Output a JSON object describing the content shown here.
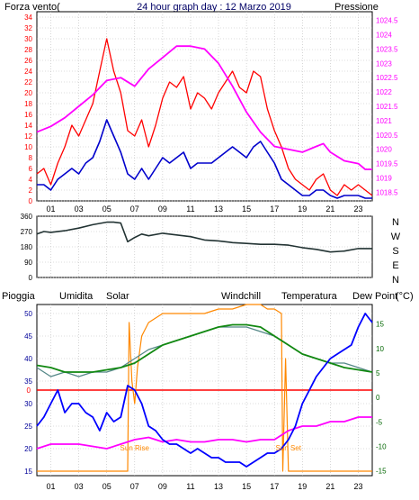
{
  "title": "24 hour graph day : 12 Marzo 2019",
  "colors": {
    "wind": "#ff0000",
    "gust_line": "#0000cc",
    "pressure": "#ff00ff",
    "direction": "#223333",
    "rain": "#ff0000",
    "humidity": "#0000ff",
    "solar": "#ff8800",
    "windchill": "#558888",
    "temperature": "#118811",
    "dewpoint": "#ff00ff",
    "rain_label": "#ff0000",
    "humidity_label": "#000099",
    "solar_label": "#886600",
    "windchill_label": "#336666",
    "temperature_label": "#006600",
    "dewpoint_label": "#cc00cc"
  },
  "x_ticks": [
    "01",
    "03",
    "05",
    "07",
    "09",
    "11",
    "13",
    "15",
    "17",
    "19",
    "21",
    "23"
  ],
  "chart_data": [
    {
      "type": "line",
      "panel": "wind and pressure",
      "xlim": [
        0,
        24
      ],
      "left_axis": {
        "label": "Forza vento(",
        "ticks": [
          0,
          2,
          4,
          6,
          8,
          10,
          12,
          14,
          16,
          18,
          20,
          22,
          24,
          26,
          28,
          30,
          32,
          34
        ]
      },
      "right_axis": {
        "label": "Pressione",
        "ticks": [
          1018.5,
          1019,
          1019.5,
          1020,
          1020.5,
          1021,
          1021.5,
          1022,
          1022.5,
          1023,
          1023.5,
          1024,
          1024.5
        ]
      },
      "series": [
        {
          "name": "Forza vento(",
          "x": [
            0,
            0.5,
            1,
            1.5,
            2,
            2.5,
            3,
            3.5,
            4,
            4.5,
            5,
            5.5,
            6,
            6.5,
            7,
            7.5,
            8,
            8.5,
            9,
            9.5,
            10,
            10.5,
            11,
            11.5,
            12,
            12.5,
            13,
            13.5,
            14,
            14.5,
            15,
            15.5,
            16,
            16.5,
            17,
            17.5,
            18,
            18.5,
            19,
            19.5,
            20,
            20.5,
            21,
            21.5,
            22,
            22.5,
            23,
            23.5,
            24
          ],
          "y": [
            5,
            6,
            3,
            7,
            10,
            14,
            12,
            15,
            18,
            24,
            30,
            24,
            20,
            13,
            12,
            15,
            10,
            14,
            19,
            22,
            21,
            23,
            17,
            20,
            19,
            17,
            20,
            22,
            24,
            21,
            20,
            24,
            23,
            17,
            13,
            10,
            6,
            4,
            3,
            2,
            4,
            5,
            2,
            1,
            3,
            2,
            3,
            2,
            1
          ]
        },
        {
          "name": "",
          "x": [
            0,
            0.5,
            1,
            1.5,
            2,
            2.5,
            3,
            3.5,
            4,
            4.5,
            5,
            5.5,
            6,
            6.5,
            7,
            7.5,
            8,
            8.5,
            9,
            9.5,
            10,
            10.5,
            11,
            11.5,
            12,
            12.5,
            13,
            13.5,
            14,
            14.5,
            15,
            15.5,
            16,
            16.5,
            17,
            17.5,
            18,
            18.5,
            19,
            19.5,
            20,
            20.5,
            21,
            21.5,
            22,
            22.5,
            23,
            23.5,
            24
          ],
          "y": [
            3,
            3,
            2,
            4,
            5,
            6,
            5,
            7,
            8,
            11,
            15,
            12,
            9,
            5,
            4,
            6,
            4,
            6,
            8,
            7,
            8,
            9,
            6,
            7,
            7,
            7,
            8,
            9,
            10,
            9,
            8,
            10,
            11,
            9,
            7,
            4,
            3,
            2,
            1,
            1,
            2,
            2,
            1,
            0.5,
            1,
            1,
            1,
            0.5,
            0.5
          ]
        },
        {
          "name": "Pressione",
          "x": [
            0,
            1,
            2,
            3,
            4,
            5,
            6,
            7,
            8,
            9,
            10,
            11,
            12,
            13,
            14,
            15,
            16,
            17,
            18,
            19,
            20,
            20.5,
            21,
            22,
            23,
            23.5,
            24
          ],
          "y": [
            1020.6,
            1020.8,
            1021.1,
            1021.5,
            1021.9,
            1022.4,
            1022.5,
            1022.2,
            1022.8,
            1023.2,
            1023.6,
            1023.6,
            1023.5,
            1023.0,
            1022.2,
            1021.3,
            1020.6,
            1020.1,
            1020.0,
            1019.9,
            1020.1,
            1020.2,
            1019.9,
            1019.6,
            1019.5,
            1019.3,
            1019.3
          ]
        }
      ]
    },
    {
      "type": "line",
      "panel": "wind direction",
      "xlim": [
        0,
        24
      ],
      "ylim": [
        0,
        360
      ],
      "y_ticks": [
        0,
        90,
        180,
        270,
        360
      ],
      "compass": [
        "N",
        "W",
        "S",
        "E",
        "N"
      ],
      "series": [
        {
          "name": "",
          "x": [
            0,
            0.5,
            1,
            2,
            3,
            4,
            5,
            5.5,
            6,
            6.5,
            7,
            7.5,
            8,
            9,
            10,
            11,
            12,
            13,
            14,
            15,
            16,
            17,
            18,
            19,
            20,
            21,
            22,
            23,
            24
          ],
          "y": [
            255,
            270,
            265,
            275,
            290,
            310,
            325,
            325,
            320,
            210,
            235,
            255,
            245,
            260,
            250,
            240,
            220,
            215,
            205,
            200,
            195,
            195,
            190,
            175,
            165,
            150,
            155,
            170,
            170
          ]
        }
      ]
    },
    {
      "type": "line",
      "panel": "rain humidity solar temperature",
      "xlim": [
        0,
        24
      ],
      "left_axis": {
        "ticks": [
          15,
          20,
          25,
          30,
          35,
          40,
          45,
          50
        ]
      },
      "right_axis": {
        "ticks": [
          -15,
          -10,
          -5,
          0,
          5,
          10,
          15
        ],
        "unit": "(°C)"
      },
      "rain_zero_label": "0",
      "series": [
        {
          "name": "Pioggia",
          "x": [
            0,
            24
          ],
          "y": [
            33,
            33
          ]
        },
        {
          "name": "Umidita",
          "x": [
            0,
            0.5,
            1,
            1.5,
            2,
            2.5,
            3,
            3.5,
            4,
            4.5,
            5,
            5.5,
            6,
            6.5,
            7,
            7.5,
            8,
            8.5,
            9,
            9.5,
            10,
            10.5,
            11,
            11.5,
            12,
            12.5,
            13,
            13.5,
            14,
            14.5,
            15,
            15.5,
            16,
            16.5,
            17,
            17.5,
            18,
            18.5,
            19,
            19.5,
            20,
            20.5,
            21,
            21.5,
            22,
            22.5,
            23,
            23.5,
            24
          ],
          "y": [
            25,
            27,
            30,
            33,
            28,
            30,
            30,
            28,
            27,
            24,
            28,
            26,
            27,
            34,
            33,
            30,
            25,
            24,
            22,
            21,
            21,
            20,
            19,
            20,
            19,
            18,
            18,
            17,
            17,
            17,
            16,
            17,
            18,
            19,
            19,
            20,
            22,
            25,
            30,
            33,
            36,
            38,
            40,
            41,
            42,
            43,
            47,
            50,
            48
          ]
        },
        {
          "name": "Solar",
          "x": [
            0,
            6.5,
            6.6,
            6.8,
            7,
            7.2,
            7.5,
            8,
            9,
            10,
            11,
            12,
            13,
            14,
            15,
            16,
            16.5,
            17,
            17.5,
            17.6,
            17.8,
            18,
            24
          ],
          "y": [
            15,
            15,
            48,
            35,
            30,
            38,
            45,
            48,
            50,
            50,
            50,
            50,
            51,
            51,
            52,
            52,
            51,
            51,
            50,
            15,
            40,
            15,
            15
          ]
        },
        {
          "name": "Windchill",
          "x": [
            0,
            1,
            2,
            3,
            4,
            5,
            6,
            7,
            8,
            9,
            10,
            11,
            12,
            13,
            14,
            15,
            16,
            17,
            18,
            19,
            20,
            21,
            22,
            23,
            24
          ],
          "y": [
            38,
            36,
            37,
            36,
            37,
            37,
            38,
            40,
            42,
            43,
            44,
            45,
            46,
            47,
            47,
            47,
            46,
            45,
            43,
            41,
            40,
            39,
            39,
            38,
            37
          ]
        },
        {
          "name": "Temperatura",
          "x": [
            0,
            1,
            2,
            3,
            4,
            5,
            6,
            7,
            8,
            9,
            10,
            11,
            12,
            13,
            14,
            15,
            16,
            17,
            18,
            19,
            20,
            21,
            22,
            23,
            24
          ],
          "y": [
            38.5,
            38,
            37,
            37,
            37,
            37.5,
            38,
            39,
            41,
            43,
            44,
            45,
            46,
            47,
            47.5,
            47.5,
            47,
            45,
            43,
            41,
            40,
            39,
            38,
            37.5,
            37
          ]
        },
        {
          "name": "Dew Point",
          "x": [
            0,
            1,
            2,
            3,
            4,
            5,
            6,
            7,
            8,
            9,
            10,
            11,
            12,
            13,
            14,
            15,
            16,
            17,
            18,
            19,
            20,
            21,
            22,
            23,
            24
          ],
          "y": [
            20,
            21,
            21,
            21,
            20.5,
            20,
            21,
            22,
            22.5,
            21.5,
            22,
            21.5,
            21.5,
            22,
            22,
            21.5,
            22,
            22,
            24,
            25,
            25,
            26,
            26,
            27,
            27
          ]
        }
      ],
      "annotations": [
        {
          "text": "Sun Rise",
          "x": 7
        },
        {
          "text": "Sun Set",
          "x": 18
        }
      ]
    }
  ]
}
